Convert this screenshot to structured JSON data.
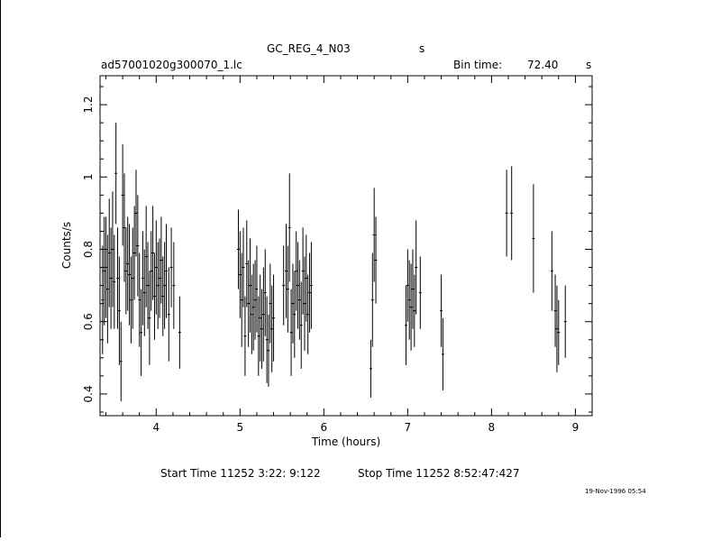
{
  "header": {
    "object": "GC_REG_4_N03",
    "object_suffix": "s",
    "file": "ad57001020g300070_1.lc",
    "bin_label": "Bin time:",
    "bin_value": "72.40",
    "bin_unit": "s"
  },
  "footer": {
    "start": "Start Time 11252  3:22: 9:122",
    "stop": "Stop Time 11252  8:52:47:427",
    "stamp": "19-Nov-1996 05:54"
  },
  "chart_data": {
    "type": "scatter",
    "xlabel": "Time (hours)",
    "ylabel": "Counts/s",
    "xlim": [
      3.33,
      9.2
    ],
    "ylim": [
      0.34,
      1.28
    ],
    "xticks": [
      4,
      5,
      6,
      7,
      8,
      9
    ],
    "xtick_labels": [
      "4",
      "5",
      "6",
      "7",
      "8",
      "9"
    ],
    "yticks": [
      0.4,
      0.6,
      0.8,
      1.0,
      1.2
    ],
    "ytick_labels": [
      "0.4",
      "0.6",
      "0.8",
      "1",
      "1.2"
    ],
    "grid": false,
    "points": [
      [
        3.36,
        0.66,
        0.15
      ],
      [
        3.38,
        0.74,
        0.15
      ],
      [
        3.4,
        0.75,
        0.14
      ],
      [
        3.42,
        0.69,
        0.15
      ],
      [
        3.44,
        0.79,
        0.15
      ],
      [
        3.46,
        0.72,
        0.14
      ],
      [
        3.48,
        0.8,
        0.16
      ],
      [
        3.5,
        0.71,
        0.13
      ],
      [
        3.52,
        1.01,
        0.14
      ],
      [
        3.54,
        0.72,
        0.14
      ],
      [
        3.56,
        0.63,
        0.15
      ],
      [
        3.58,
        0.49,
        0.11
      ],
      [
        3.6,
        0.95,
        0.14
      ],
      [
        3.62,
        0.86,
        0.15
      ],
      [
        3.64,
        0.74,
        0.12
      ],
      [
        3.66,
        0.76,
        0.13
      ],
      [
        3.68,
        0.73,
        0.14
      ],
      [
        3.7,
        0.66,
        0.12
      ],
      [
        3.72,
        0.72,
        0.14
      ],
      [
        3.74,
        0.79,
        0.13
      ],
      [
        3.76,
        0.9,
        0.12
      ],
      [
        3.78,
        0.81,
        0.14
      ],
      [
        3.8,
        0.66,
        0.13
      ],
      [
        3.82,
        0.57,
        0.12
      ],
      [
        3.84,
        0.72,
        0.13
      ],
      [
        3.86,
        0.68,
        0.12
      ],
      [
        3.88,
        0.78,
        0.14
      ],
      [
        3.9,
        0.7,
        0.12
      ],
      [
        3.92,
        0.61,
        0.13
      ],
      [
        3.94,
        0.74,
        0.11
      ],
      [
        3.96,
        0.79,
        0.13
      ],
      [
        3.98,
        0.67,
        0.12
      ],
      [
        4.0,
        0.75,
        0.13
      ],
      [
        4.02,
        0.7,
        0.12
      ],
      [
        4.04,
        0.72,
        0.11
      ],
      [
        4.06,
        0.77,
        0.12
      ],
      [
        4.08,
        0.67,
        0.11
      ],
      [
        4.1,
        0.7,
        0.12
      ],
      [
        4.12,
        0.74,
        0.13
      ],
      [
        4.15,
        0.62,
        0.13
      ],
      [
        4.18,
        0.75,
        0.11
      ],
      [
        4.21,
        0.7,
        0.12
      ],
      [
        4.28,
        0.57,
        0.1
      ],
      [
        4.98,
        0.8,
        0.11
      ],
      [
        5.0,
        0.73,
        0.12
      ],
      [
        5.02,
        0.66,
        0.13
      ],
      [
        5.04,
        0.75,
        0.11
      ],
      [
        5.06,
        0.56,
        0.11
      ],
      [
        5.08,
        0.76,
        0.12
      ],
      [
        5.1,
        0.65,
        0.12
      ],
      [
        5.12,
        0.7,
        0.13
      ],
      [
        5.14,
        0.62,
        0.11
      ],
      [
        5.16,
        0.64,
        0.12
      ],
      [
        5.18,
        0.66,
        0.11
      ],
      [
        5.2,
        0.69,
        0.12
      ],
      [
        5.22,
        0.56,
        0.11
      ],
      [
        5.24,
        0.61,
        0.12
      ],
      [
        5.26,
        0.58,
        0.11
      ],
      [
        5.28,
        0.62,
        0.13
      ],
      [
        5.3,
        0.68,
        0.12
      ],
      [
        5.32,
        0.55,
        0.12
      ],
      [
        5.34,
        0.52,
        0.1
      ],
      [
        5.36,
        0.65,
        0.11
      ],
      [
        5.38,
        0.58,
        0.12
      ],
      [
        5.4,
        0.61,
        0.12
      ],
      [
        5.52,
        0.7,
        0.11
      ],
      [
        5.55,
        0.74,
        0.13
      ],
      [
        5.57,
        0.69,
        0.12
      ],
      [
        5.59,
        0.86,
        0.15
      ],
      [
        5.61,
        0.57,
        0.12
      ],
      [
        5.63,
        0.65,
        0.11
      ],
      [
        5.65,
        0.62,
        0.12
      ],
      [
        5.67,
        0.74,
        0.11
      ],
      [
        5.69,
        0.7,
        0.12
      ],
      [
        5.71,
        0.66,
        0.11
      ],
      [
        5.73,
        0.59,
        0.12
      ],
      [
        5.75,
        0.74,
        0.12
      ],
      [
        5.77,
        0.65,
        0.13
      ],
      [
        5.79,
        0.72,
        0.12
      ],
      [
        5.81,
        0.62,
        0.11
      ],
      [
        5.83,
        0.68,
        0.11
      ],
      [
        5.85,
        0.7,
        0.12
      ],
      [
        6.56,
        0.47,
        0.08
      ],
      [
        6.58,
        0.66,
        0.13
      ],
      [
        6.6,
        0.84,
        0.13
      ],
      [
        6.62,
        0.77,
        0.12
      ],
      [
        6.98,
        0.59,
        0.11
      ],
      [
        7.0,
        0.7,
        0.1
      ],
      [
        7.02,
        0.66,
        0.11
      ],
      [
        7.04,
        0.64,
        0.12
      ],
      [
        7.06,
        0.69,
        0.11
      ],
      [
        7.08,
        0.63,
        0.1
      ],
      [
        7.1,
        0.75,
        0.13
      ],
      [
        7.15,
        0.68,
        0.1
      ],
      [
        7.4,
        0.63,
        0.1
      ],
      [
        7.42,
        0.51,
        0.1
      ],
      [
        8.18,
        0.9,
        0.12
      ],
      [
        8.24,
        0.9,
        0.13
      ],
      [
        8.5,
        0.83,
        0.15
      ],
      [
        8.72,
        0.74,
        0.11
      ],
      [
        8.76,
        0.63,
        0.1
      ],
      [
        8.78,
        0.58,
        0.12
      ],
      [
        8.8,
        0.57,
        0.09
      ],
      [
        8.88,
        0.6,
        0.1
      ]
    ]
  }
}
